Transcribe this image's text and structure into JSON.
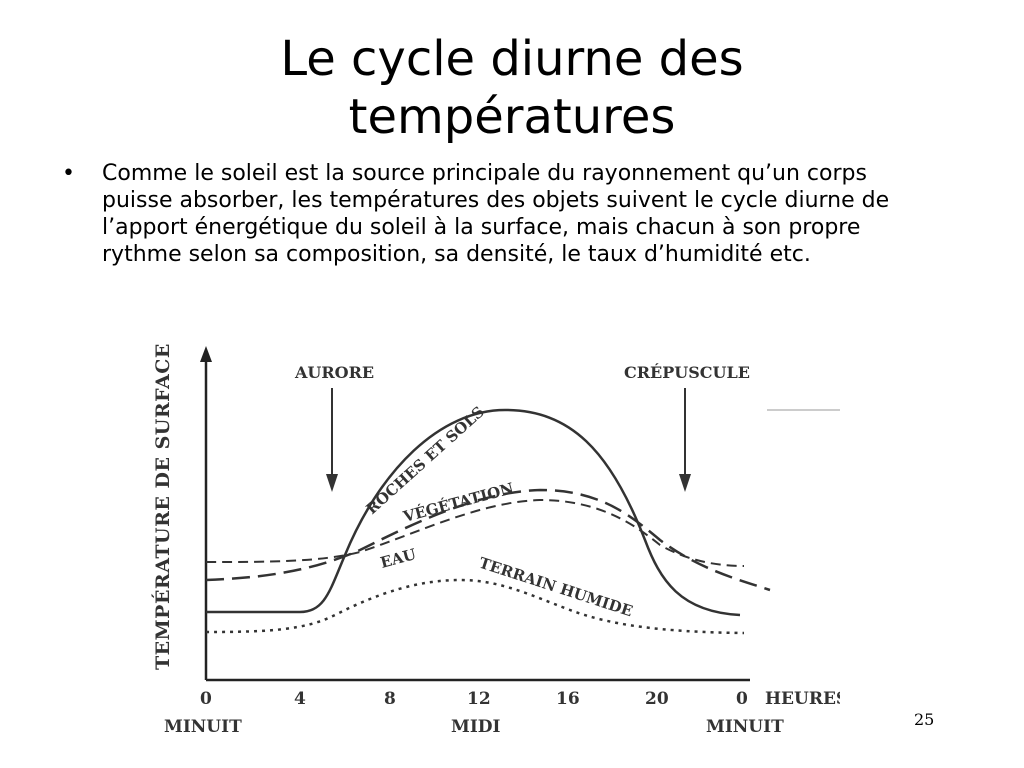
{
  "slide": {
    "title_line1": "Le cycle diurne des",
    "title_line2": "températures",
    "bullet_marker": "•",
    "bullet_text": "Comme le soleil est la source principale du rayonnement qu’un corps puisse absorber, les températures des objets suivent le cycle diurne de l’apport énergétique du soleil à la surface, mais chacun à son propre rythme selon sa composition, sa densité, le taux d’humidité etc.",
    "page_number": "25"
  },
  "chart_data": {
    "type": "line",
    "ylabel": "TEMPÉRATURE DE SURFACE",
    "xlabel": "HEURES",
    "x_ticks": [
      "0",
      "4",
      "8",
      "12",
      "16",
      "20",
      "0"
    ],
    "x_sublabels": [
      "MINUIT",
      "MIDI",
      "MINUIT"
    ],
    "annotations": [
      "AURORE",
      "CRÉPUSCULE"
    ],
    "series": [
      {
        "name": "ROCHES ET SOLS",
        "style": "solid"
      },
      {
        "name": "VÉGÉTATION",
        "style": "long-dash"
      },
      {
        "name": "EAU",
        "style": "dash"
      },
      {
        "name": "TERRAIN HUMIDE",
        "style": "dotted"
      }
    ]
  }
}
